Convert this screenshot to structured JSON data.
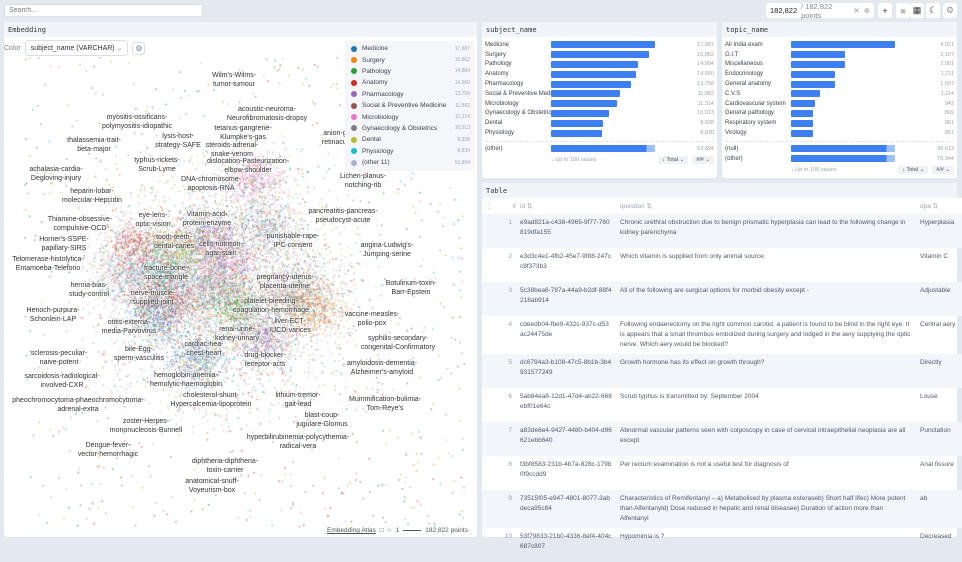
{
  "search": {
    "placeholder": "Search..."
  },
  "topbar": {
    "count_selected": "182,822",
    "count_total": "/ 182,822 points"
  },
  "embedding": {
    "title": "Embedding",
    "color_label": "Color",
    "color_select": "subject_name (VARCHAR)",
    "legend": [
      {
        "label": "Medicine",
        "count": "17,887",
        "color": "#1f77b4"
      },
      {
        "label": "Surgery",
        "count": "16,862",
        "color": "#ff7f0e"
      },
      {
        "label": "Pathology",
        "count": "14,884",
        "color": "#2ca02c"
      },
      {
        "label": "Anatomy",
        "count": "14,560",
        "color": "#d62728"
      },
      {
        "label": "Pharmacology",
        "count": "13,758",
        "color": "#9467bd"
      },
      {
        "label": "Social & Preventive Medicine",
        "count": "11,882",
        "color": "#8c564b"
      },
      {
        "label": "Microbiology",
        "count": "11,314",
        "color": "#e377c2"
      },
      {
        "label": "Gynaecology & Obstetrics",
        "count": "10,013",
        "color": "#7f7f7f"
      },
      {
        "label": "Dental",
        "count": "8,938",
        "color": "#bcbd22"
      },
      {
        "label": "Physiology",
        "count": "8,830",
        "color": "#17becf"
      },
      {
        "label": "(other 11)",
        "count": "53,894",
        "color": "#a8b4cc"
      }
    ],
    "labels": [
      "Wilm's-Wilms-\ntumor-tumour",
      "acoustic-neuroma-\nNeurofibromatosis-dropsy",
      "myositis-ossificans-\npolymyositis-idiopathic",
      "tetanus-gangrene-\nKlumpke's-gas",
      "anion-gap-\nretinaculum",
      "thalassemia-trait-\nbeta-major",
      "lysis-host-\nstrategy-SAFE",
      "steroids-adrenal-\nsnake-venom",
      "typhus-rickets-\nScrub-Lyme",
      "dislocation-Pasteurization-\nelbow-shoulder",
      "achalasia-cardia-\nDegloving-injury",
      "DNA-chromosome-\napoptosis-RNA",
      "Lichen-planus-\nnotching-rib",
      "heparin-lobar-\nmolecular-Hepcidin",
      "pancreatitis-pancreas-\npseudocyst-acute",
      "Vitamin-acid-\nprotein-enzyme",
      "eye-lens-\noptic-vision",
      "Thiamine-obsessive-\ncompulsive-OCD",
      "punishable-rape-\nIPC-consent",
      "tooth-teeth-\ndental-caries",
      "cells-nutrition-\nagar-stain",
      "angina-Ludwig's-\nJumping-serine",
      "Horner's-SSPE-\npapillary-SIRS",
      "Telomerase-histolytica-\nEntamoeba-Telefono",
      "fracture-bone-\nspace-triangle",
      "pregnancy-uterus-\nplacenta-uterine",
      "Botulinum-toxin-\nBarr-Epstein",
      "hernia-bias-\nstudy-control",
      "nerve-muscle-\nsupplied-joint",
      "platelet-bleeding-\ncoagulation-hemorrhage",
      "Henoch-purpura-\nSchonlein-LAP",
      "vaccine-measles-\npolio-pox",
      "otitis-externa-\nmedia-Parvovirus",
      "liver-ECT-\nIUCD-varices",
      "renal-urine-\nkidney-urinary",
      "cardiac-hea-\nchest-heart",
      "syphilis-secondary-\ncongenital-Confirmatory",
      "bile-Egg-\nsperm-vasculitis",
      "sclerosis-peculiar-\nnaive-potent",
      "drug-blocker-\nreceptor-acts",
      "amyloidosis-dementia-\nAlzheimer's-amyloid",
      "hemoglobin-anemia-\nhemolytic-haemoglobin",
      "sarcoidosis-radiological-\ninvolved-CXR",
      "cholesterol-shunt-\nHypercalcemia-lipoprotein",
      "lithium-tremor-\ngait-lead",
      "pheochromocytoma-phaeochromocytoma-\nadrenal-extra",
      "Mummification-bulimia-\nTom-Reye's",
      "blast-coup-\njugulare-Glomus",
      "zoster-Herpes-\nmononucleosis-Bunnell",
      "hyperbilirubinemia-polycythemia-\nradical-vera",
      "Dengue-fever-\nvector-hemorrhagic",
      "diphtheria-diphtheria-\ntoxin-carrier",
      "anatomical-snuff-\nVoyeurism-box"
    ],
    "footer": {
      "link": "Embedding Atlas",
      "scale": "1",
      "points": "182,822 points"
    }
  },
  "subject": {
    "title": "subject_name",
    "max": 17887,
    "items": [
      {
        "label": "Medicine",
        "value": 17887,
        "text": "17,887"
      },
      {
        "label": "Surgery",
        "value": 16862,
        "text": "16,862"
      },
      {
        "label": "Pathology",
        "value": 14884,
        "text": "14,884"
      },
      {
        "label": "Anatomy",
        "value": 14560,
        "text": "14,560"
      },
      {
        "label": "Pharmacology",
        "value": 13758,
        "text": "13,758"
      },
      {
        "label": "Social & Preventive Medicine",
        "value": 11882,
        "text": "11,882"
      },
      {
        "label": "Microbiology",
        "value": 11314,
        "text": "11,314"
      },
      {
        "label": "Gynaecology & Obstetrics",
        "value": 10013,
        "text": "10,013"
      },
      {
        "label": "Dental",
        "value": 8938,
        "text": "8,938"
      },
      {
        "label": "Physiology",
        "value": 8830,
        "text": "8,830"
      }
    ],
    "extra": [
      {
        "label": "(other)",
        "text": "53,894"
      }
    ],
    "more": "↓ Up to 100 values",
    "sort": "↓ Total",
    "fmt": "#/#"
  },
  "topic": {
    "title": "topic_name",
    "max": 4021,
    "items": [
      {
        "label": "All India exam",
        "value": 4021,
        "text": "4,021"
      },
      {
        "label": "G.I.T",
        "value": 2107,
        "text": "2,107"
      },
      {
        "label": "Miscellaneous",
        "value": 2091,
        "text": "2,091"
      },
      {
        "label": "Endocrinology",
        "value": 1711,
        "text": "1,711"
      },
      {
        "label": "General anatomy",
        "value": 1697,
        "text": "1,697"
      },
      {
        "label": "C.V.S",
        "value": 1114,
        "text": "1,114"
      },
      {
        "label": "Cardiovascular system",
        "value": 943,
        "text": "943"
      },
      {
        "label": "General pathology",
        "value": 869,
        "text": "869"
      },
      {
        "label": "Respiratory system",
        "value": 861,
        "text": "861"
      },
      {
        "label": "Virology",
        "value": 851,
        "text": "851"
      }
    ],
    "extra": [
      {
        "label": "(null)",
        "text": "95,613"
      },
      {
        "label": "(other)",
        "text": "70,944"
      }
    ],
    "more": "↓ Up to 100 values",
    "sort": "↓ Total",
    "fmt": "#/#"
  },
  "table": {
    "title": "Table",
    "columns": [
      "#",
      "id",
      "question",
      "opa"
    ],
    "rows": [
      [
        "1",
        "e9ad821a-c438-4965-9f77-760819dfa155",
        "Chronic urethral obstruction due to benign prismatic hyperplasia can lead to the following change in kidney parenchyma",
        "Hyperplasia"
      ],
      [
        "2",
        "e3d3c4e1-4fb2-45e7-9f88-247cc8f373b3",
        "Which vitamin is supplied from only animal source:",
        "Vitamin C"
      ],
      [
        "3",
        "5c38bea6-787a-44a9-b2df-88f4218ab914",
        "All of the following are surgical options for morbid obesity except -",
        "Adjustable"
      ],
      [
        "4",
        "cdeedb04-fbe9-432c-937c-d53ac24475de",
        "Following endaerectomy on the right common carotid, a patient is found to be blind in the right eye. It is appears that a small thrombus embolized during surgery and lodged in the aery supplying the optic nerve. Which aery would be blocked?",
        "Central aery"
      ],
      [
        "5",
        "dc6794a3-b108-47c5-8b1b-3b4931577249",
        "Growth hormone has its effect on growth through?",
        "Directly"
      ],
      [
        "6",
        "5ab84ea8-12d1-47d4-ab22-668ebf01e64c",
        "Scrub typhus is transmitted by: September 2004",
        "Louse"
      ],
      [
        "7",
        "a83de6e4-9427-4480-b404-d96621ebb640",
        "Abnormal vascular patterns seen with colposcopy in case of cervical intraepithelial neoplasia are all except",
        "Punctation"
      ],
      [
        "8",
        "f3bf8583-231b-4b7a-828c-179b0f9ccdd9",
        "Per rectum examination is not a useful test for diagnosis of",
        "Anal fissure"
      ],
      [
        "9",
        "73515f05-e947-4801-8077-3abdeca95c84",
        "Characteristics of Remifentanyl – a) Metabolised by plasma esteraseb) Short half lifec) More potent than Alfentanyld) Dose reduced in hepatic and renal diseasee) Duration of action more than Alfentanyl",
        "ab"
      ],
      [
        "10",
        "53f79833-21b0-4336-8ef4-404c687c807",
        "Hypomimia is ?",
        "Decreased"
      ]
    ]
  }
}
